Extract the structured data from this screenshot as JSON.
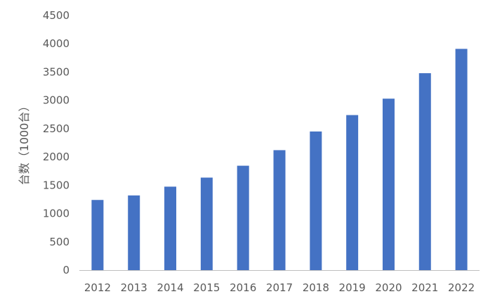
{
  "chart_data": {
    "type": "bar",
    "title": "",
    "xlabel": "",
    "ylabel": "台数（1000台）",
    "categories": [
      "2012",
      "2013",
      "2014",
      "2015",
      "2016",
      "2017",
      "2018",
      "2019",
      "2020",
      "2021",
      "2022"
    ],
    "series": [
      {
        "values": [
          1240,
          1320,
          1475,
          1635,
          1845,
          2120,
          2450,
          2740,
          3030,
          3480,
          3910
        ]
      }
    ],
    "ylim": [
      0,
      4500
    ],
    "yticks": [
      0,
      500,
      1000,
      1500,
      2000,
      2500,
      3000,
      3500,
      4000,
      4500
    ],
    "grid": false,
    "legend": "none",
    "colors": {
      "bar": "#4472C4",
      "axis_line": "#BFBFBF",
      "text": "#595959"
    }
  }
}
